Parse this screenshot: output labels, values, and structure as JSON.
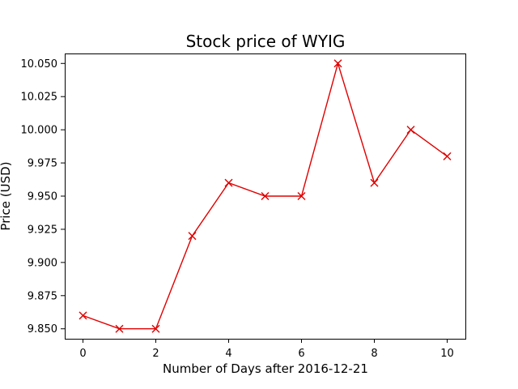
{
  "chart_data": {
    "type": "line",
    "title": "Stock price of WYIG",
    "xlabel": "Number of Days after 2016-12-21",
    "ylabel": "Price (USD)",
    "x": [
      0,
      1,
      2,
      3,
      4,
      5,
      6,
      7,
      8,
      9,
      10
    ],
    "series": [
      {
        "values": [
          9.86,
          9.85,
          9.85,
          9.92,
          9.96,
          9.95,
          9.95,
          10.05,
          9.96,
          10.0,
          9.98
        ],
        "color": "#e00000",
        "marker": "x"
      }
    ],
    "xlim": [
      -0.5,
      10.5
    ],
    "ylim": [
      9.8425,
      10.0575
    ],
    "xticks": [
      0,
      2,
      4,
      6,
      8,
      10
    ],
    "yticks": [
      9.85,
      9.875,
      9.9,
      9.925,
      9.95,
      9.975,
      10.0,
      10.025,
      10.05
    ],
    "ytick_decimals": 3,
    "grid": false,
    "legend": "none"
  }
}
